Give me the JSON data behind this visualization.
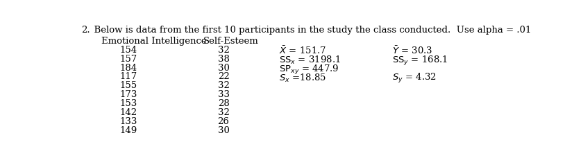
{
  "title_num": "2.",
  "title_text": "  Below is data from the first 10 participants in the study the class conducted.  Use alpha = .01",
  "col1_header": "Emotional Intelligence",
  "col2_header": "Self-Esteem",
  "col1_data": [
    154,
    157,
    184,
    117,
    155,
    173,
    153,
    142,
    133,
    149
  ],
  "col2_data": [
    32,
    38,
    30,
    22,
    32,
    33,
    28,
    32,
    26,
    30
  ],
  "bg_color": "#ffffff",
  "font_size": 9.5,
  "title_font_size": 9.5
}
